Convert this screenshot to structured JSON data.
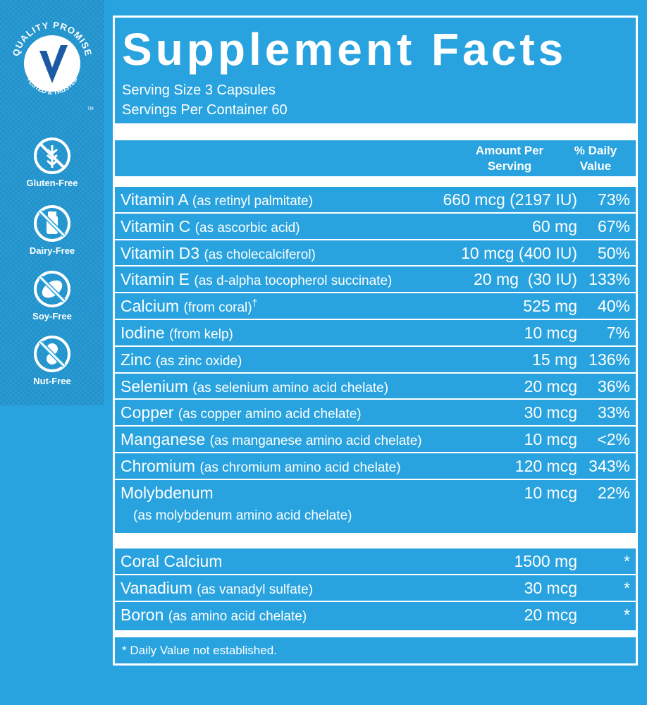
{
  "sidebar": {
    "badge_top": "QUALITY PROMISE",
    "badge_bottom": "TESTED & TRUSTED",
    "badge_tm": "TM",
    "claims": [
      "Gluten-Free",
      "Dairy-Free",
      "Soy-Free",
      "Nut-Free"
    ]
  },
  "header": {
    "title": "Supplement Facts",
    "serving_size": "Serving Size 3 Capsules",
    "servings_per_container": "Servings Per Container 60"
  },
  "columns": {
    "amount": "Amount Per Serving",
    "daily_value": "% Daily Value"
  },
  "nutrients": [
    {
      "name": "Vitamin A",
      "source": "(as retinyl palmitate)",
      "amount": "660 mcg (2197 IU)",
      "dv": "73%"
    },
    {
      "name": "Vitamin C",
      "source": "(as ascorbic acid)",
      "amount": "60 mg",
      "dv": "67%"
    },
    {
      "name": "Vitamin D3",
      "source": "(as cholecalciferol)",
      "amount": "10 mcg (400 IU)",
      "dv": "50%"
    },
    {
      "name": "Vitamin E",
      "source": "(as d-alpha tocopherol succinate)",
      "amount": "20 mg  (30 IU)",
      "dv": "133%"
    },
    {
      "name": "Calcium",
      "source": "(from coral)",
      "mark": "†",
      "amount": "525 mg",
      "dv": "40%"
    },
    {
      "name": "Iodine",
      "source": "(from kelp)",
      "amount": "10 mcg",
      "dv": "7%"
    },
    {
      "name": "Zinc",
      "source": "(as zinc oxide)",
      "amount": "15 mg",
      "dv": "136%"
    },
    {
      "name": "Selenium",
      "source": "(as selenium amino acid chelate)",
      "amount": "20 mcg",
      "dv": "36%"
    },
    {
      "name": "Copper",
      "source": "(as copper amino acid chelate)",
      "amount": "30 mcg",
      "dv": "33%"
    },
    {
      "name": "Manganese",
      "source": "(as manganese amino acid chelate)",
      "amount": "10 mcg",
      "dv": "<2%"
    },
    {
      "name": "Chromium",
      "source": "(as chromium amino acid chelate)",
      "amount": "120 mcg",
      "dv": "343%"
    },
    {
      "name": "Molybdenum",
      "source": "(as molybdenum amino acid chelate)",
      "amount": "10 mcg",
      "dv": "22%",
      "wrap": true
    }
  ],
  "other_ingredients": [
    {
      "name": "Coral Calcium",
      "amount": "1500 mg",
      "dv": "*"
    },
    {
      "name": "Vanadium",
      "source": "(as vanadyl sulfate)",
      "amount": "30 mcg",
      "dv": "*"
    },
    {
      "name": "Boron",
      "source": "(as amino acid chelate)",
      "amount": "20 mcg",
      "dv": "*"
    }
  ],
  "footnote": "* Daily Value not established."
}
